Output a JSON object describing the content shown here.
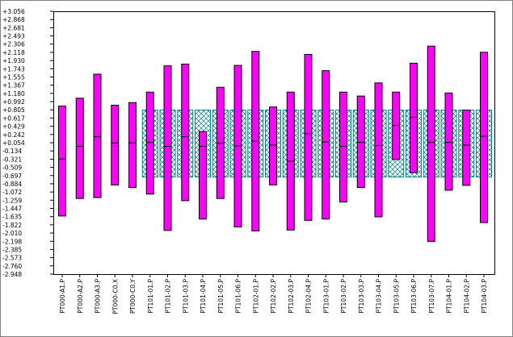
{
  "chart_data": {
    "type": "bar",
    "subtype": "floating-range",
    "title": "",
    "xlabel": "",
    "ylabel": "",
    "ylim": [
      -2.948,
      3.056
    ],
    "y_ticks": [
      "3.056",
      "2.868",
      "2.681",
      "2.493",
      "2.306",
      "2.118",
      "1.930",
      "1.743",
      "1.555",
      "1.367",
      "1.180",
      "0.992",
      "0.805",
      "0.617",
      "0.429",
      "0.242",
      "0.054",
      "-0.134",
      "-0.321",
      "-0.509",
      "-0.697",
      "-0.884",
      "-1.072",
      "-1.259",
      "-1.447",
      "-1.635",
      "-1.822",
      "-2.010",
      "-2.198",
      "-2.385",
      "-2.573",
      "-2.760",
      "-2.948"
    ],
    "grid": false,
    "legend": "none",
    "categories": [
      "PT000-A1.P",
      "PT000-A2.P",
      "PT000-A3.P",
      "PT000-C0.X",
      "PT000-C0.Y",
      "PT101-01.P",
      "PT101-02.P",
      "PT101-03.P",
      "PT101-04.P",
      "PT101-05.P",
      "PT101-06.P",
      "PT102-01.P",
      "PT102-02.P",
      "PT102-03.P",
      "PT102-04.P",
      "PT103-01.P",
      "PT103-02.P",
      "PT103-03.P",
      "PT103-04.P",
      "PT103-05.P",
      "PT103-06.P",
      "PT103-07.P",
      "PT104-01.P",
      "PT104-02.P",
      "PT104-03.P"
    ],
    "series": [
      {
        "style": "magenta-range",
        "color": "#ff00ff",
        "low": [
          -1.62,
          -1.22,
          -1.2,
          -0.91,
          -0.97,
          -1.12,
          -1.95,
          -1.27,
          -1.69,
          -1.22,
          -1.87,
          -1.96,
          -0.91,
          -1.94,
          -1.72,
          -1.69,
          -1.3,
          -0.97,
          -1.64,
          -0.33,
          -0.63,
          -2.2,
          -1.03,
          -0.92,
          -1.77
        ],
        "high": [
          0.89,
          1.07,
          1.62,
          0.91,
          0.97,
          1.21,
          1.81,
          1.85,
          0.31,
          1.32,
          1.82,
          2.14,
          0.87,
          1.21,
          2.07,
          1.7,
          1.21,
          1.12,
          1.42,
          1.21,
          1.87,
          2.26,
          1.19,
          0.8,
          2.12
        ],
        "mid": [
          -0.32,
          -0.03,
          0.19,
          0.05,
          0.05,
          0.06,
          -0.03,
          0.19,
          -0.03,
          0.04,
          -0.02,
          0.09,
          0.0,
          -0.37,
          0.26,
          0.07,
          -0.03,
          0.06,
          -0.01,
          0.45,
          0.64,
          0.06,
          0.06,
          0.0,
          0.2
        ]
      },
      {
        "style": "teal-crosshatch-band",
        "color": "#008080",
        "present": [
          false,
          false,
          false,
          false,
          false,
          true,
          true,
          true,
          true,
          true,
          true,
          true,
          true,
          true,
          true,
          true,
          true,
          true,
          true,
          true,
          true,
          true,
          true,
          true,
          true
        ],
        "low": [
          -0.73,
          -0.73,
          -0.73,
          -0.73,
          -0.73,
          -0.73,
          -0.73,
          -0.73,
          -0.73,
          -0.73,
          -0.73,
          -0.73,
          -0.73,
          -0.73,
          -0.73,
          -0.73,
          -0.73,
          -0.73,
          -0.73,
          -0.73,
          -0.73,
          -0.73,
          -0.73,
          -0.73,
          -0.73
        ],
        "high": [
          0.8,
          0.8,
          0.8,
          0.8,
          0.8,
          0.8,
          0.8,
          0.8,
          0.8,
          0.8,
          0.8,
          0.8,
          0.8,
          0.8,
          0.8,
          0.8,
          0.8,
          0.8,
          0.8,
          0.8,
          0.8,
          0.8,
          0.8,
          0.8,
          0.8
        ]
      }
    ]
  }
}
